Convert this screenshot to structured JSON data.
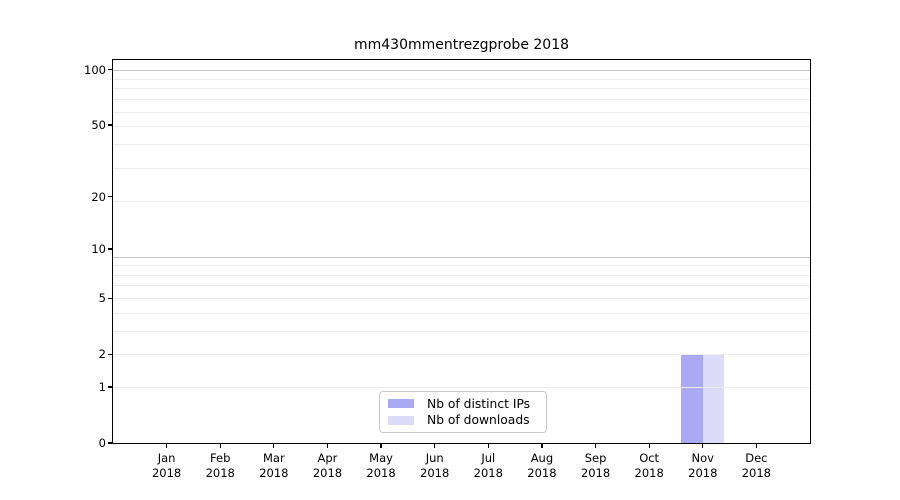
{
  "title": "mm430mmentrezgprobe 2018",
  "chart_data": {
    "type": "bar",
    "title": "mm430mmentrezgprobe 2018",
    "categories": [
      "Jan 2018",
      "Feb 2018",
      "Mar 2018",
      "Apr 2018",
      "May 2018",
      "Jun 2018",
      "Jul 2018",
      "Aug 2018",
      "Sep 2018",
      "Oct 2018",
      "Nov 2018",
      "Dec 2018"
    ],
    "series": [
      {
        "name": "Nb of distinct IPs",
        "color": "#a9a9f4",
        "values": [
          0,
          0,
          0,
          0,
          0,
          0,
          0,
          0,
          0,
          0,
          2,
          0
        ]
      },
      {
        "name": "Nb of downloads",
        "color": "#dcdcf8",
        "values": [
          0,
          0,
          0,
          0,
          0,
          0,
          0,
          0,
          0,
          0,
          2,
          0
        ]
      }
    ],
    "xlabel": "",
    "ylabel": "",
    "yscale": "log1p",
    "yticks": [
      100,
      50,
      20,
      10,
      5,
      2,
      1,
      0
    ],
    "ylim": [
      0,
      113
    ],
    "grid": true,
    "legend": {
      "position": "inside-bottom-center",
      "items": [
        "Nb of distinct IPs",
        "Nb of downloads"
      ]
    }
  },
  "colors": {
    "background": "#ffffff",
    "spine": "#000000",
    "grid_minor": "#ececec",
    "grid_major": "#c4c4c4",
    "text": "#000000",
    "legend_border": "#c9c9c9",
    "bar_distinct_ips": "#a9a9f4",
    "bar_downloads": "#dcdcf8"
  }
}
